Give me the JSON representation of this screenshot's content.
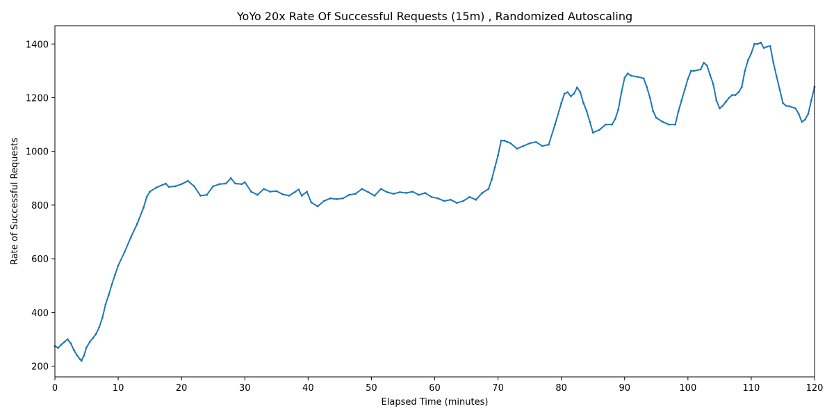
{
  "chart_data": {
    "type": "line",
    "title": "YoYo 20x Rate Of Successful Requests (15m) , Randomized Autoscaling",
    "xlabel": "Elapsed Time (minutes)",
    "ylabel": "Rate of Successful Requests",
    "xlim": [
      0,
      120
    ],
    "ylim": [
      160,
      1468
    ],
    "xticks": [
      0,
      10,
      20,
      30,
      40,
      50,
      60,
      70,
      80,
      90,
      100,
      110,
      120
    ],
    "yticks": [
      200,
      400,
      600,
      800,
      1000,
      1200,
      1400
    ],
    "grid": false,
    "legend": "none",
    "series": [
      {
        "color": "#1f77b4",
        "points": [
          [
            0,
            275
          ],
          [
            0.5,
            268
          ],
          [
            1,
            280
          ],
          [
            1.5,
            290
          ],
          [
            2,
            300
          ],
          [
            2.5,
            285
          ],
          [
            3,
            260
          ],
          [
            3.5,
            240
          ],
          [
            4,
            225
          ],
          [
            4.2,
            220
          ],
          [
            4.6,
            240
          ],
          [
            5,
            270
          ],
          [
            5.5,
            290
          ],
          [
            6,
            305
          ],
          [
            6.5,
            320
          ],
          [
            7,
            345
          ],
          [
            7.5,
            380
          ],
          [
            8,
            430
          ],
          [
            8.5,
            465
          ],
          [
            9,
            505
          ],
          [
            9.5,
            540
          ],
          [
            10,
            575
          ],
          [
            11,
            625
          ],
          [
            12,
            680
          ],
          [
            13,
            730
          ],
          [
            14,
            790
          ],
          [
            14.5,
            830
          ],
          [
            15,
            850
          ],
          [
            16,
            865
          ],
          [
            17,
            875
          ],
          [
            17.5,
            880
          ],
          [
            18,
            868
          ],
          [
            19,
            870
          ],
          [
            20,
            878
          ],
          [
            21,
            890
          ],
          [
            22,
            870
          ],
          [
            23,
            835
          ],
          [
            24,
            838
          ],
          [
            25,
            870
          ],
          [
            26,
            878
          ],
          [
            27,
            880
          ],
          [
            27.8,
            900
          ],
          [
            28.5,
            880
          ],
          [
            29.5,
            878
          ],
          [
            30,
            885
          ],
          [
            31,
            850
          ],
          [
            32,
            838
          ],
          [
            33,
            860
          ],
          [
            34,
            850
          ],
          [
            35,
            852
          ],
          [
            36,
            840
          ],
          [
            37,
            835
          ],
          [
            38,
            850
          ],
          [
            38.5,
            858
          ],
          [
            39,
            835
          ],
          [
            39.8,
            850
          ],
          [
            40.5,
            810
          ],
          [
            41.5,
            795
          ],
          [
            42.5,
            815
          ],
          [
            43.5,
            825
          ],
          [
            44.5,
            822
          ],
          [
            45.5,
            825
          ],
          [
            46.5,
            838
          ],
          [
            47.5,
            842
          ],
          [
            48.5,
            860
          ],
          [
            49.5,
            848
          ],
          [
            50.5,
            835
          ],
          [
            51.5,
            860
          ],
          [
            52.5,
            848
          ],
          [
            53.5,
            842
          ],
          [
            54.5,
            848
          ],
          [
            55.5,
            845
          ],
          [
            56.5,
            850
          ],
          [
            57.5,
            838
          ],
          [
            58.5,
            845
          ],
          [
            59.5,
            830
          ],
          [
            60.5,
            825
          ],
          [
            61.5,
            815
          ],
          [
            62.5,
            820
          ],
          [
            63.5,
            808
          ],
          [
            64.5,
            815
          ],
          [
            65.5,
            830
          ],
          [
            66.5,
            820
          ],
          [
            67.5,
            845
          ],
          [
            68.5,
            860
          ],
          [
            69,
            895
          ],
          [
            69.5,
            940
          ],
          [
            70,
            985
          ],
          [
            70.5,
            1040
          ],
          [
            71,
            1040
          ],
          [
            71.5,
            1035
          ],
          [
            72,
            1030
          ],
          [
            73,
            1010
          ],
          [
            74,
            1020
          ],
          [
            75,
            1030
          ],
          [
            76,
            1035
          ],
          [
            77,
            1020
          ],
          [
            78,
            1025
          ],
          [
            79,
            1100
          ],
          [
            80,
            1180
          ],
          [
            80.5,
            1215
          ],
          [
            81,
            1220
          ],
          [
            81.5,
            1205
          ],
          [
            82,
            1215
          ],
          [
            82.5,
            1238
          ],
          [
            83,
            1220
          ],
          [
            83.5,
            1180
          ],
          [
            84,
            1150
          ],
          [
            84.5,
            1110
          ],
          [
            85,
            1070
          ],
          [
            86,
            1080
          ],
          [
            87,
            1100
          ],
          [
            88,
            1100
          ],
          [
            88.5,
            1120
          ],
          [
            89,
            1155
          ],
          [
            89.5,
            1220
          ],
          [
            90,
            1275
          ],
          [
            90.5,
            1290
          ],
          [
            91,
            1282
          ],
          [
            92,
            1278
          ],
          [
            93,
            1272
          ],
          [
            93.5,
            1240
          ],
          [
            94,
            1200
          ],
          [
            94.5,
            1150
          ],
          [
            95,
            1125
          ],
          [
            96,
            1110
          ],
          [
            97,
            1100
          ],
          [
            98,
            1100
          ],
          [
            98.5,
            1150
          ],
          [
            99,
            1190
          ],
          [
            99.5,
            1230
          ],
          [
            100,
            1270
          ],
          [
            100.5,
            1300
          ],
          [
            101,
            1300
          ],
          [
            102,
            1305
          ],
          [
            102.5,
            1330
          ],
          [
            103,
            1320
          ],
          [
            103.5,
            1285
          ],
          [
            104,
            1250
          ],
          [
            104.5,
            1190
          ],
          [
            105,
            1160
          ],
          [
            105.5,
            1170
          ],
          [
            106,
            1185
          ],
          [
            106.5,
            1200
          ],
          [
            107,
            1210
          ],
          [
            107.5,
            1210
          ],
          [
            108,
            1220
          ],
          [
            108.5,
            1240
          ],
          [
            109,
            1300
          ],
          [
            109.5,
            1340
          ],
          [
            110,
            1365
          ],
          [
            110.5,
            1400
          ],
          [
            111,
            1400
          ],
          [
            111.5,
            1405
          ],
          [
            112,
            1385
          ],
          [
            112.5,
            1390
          ],
          [
            113,
            1392
          ],
          [
            113.5,
            1330
          ],
          [
            114,
            1280
          ],
          [
            114.5,
            1230
          ],
          [
            115,
            1180
          ],
          [
            115.5,
            1170
          ],
          [
            116,
            1168
          ],
          [
            117,
            1160
          ],
          [
            117.5,
            1140
          ],
          [
            118,
            1110
          ],
          [
            118.5,
            1118
          ],
          [
            119,
            1140
          ],
          [
            119.5,
            1190
          ],
          [
            120,
            1240
          ]
        ]
      }
    ]
  }
}
